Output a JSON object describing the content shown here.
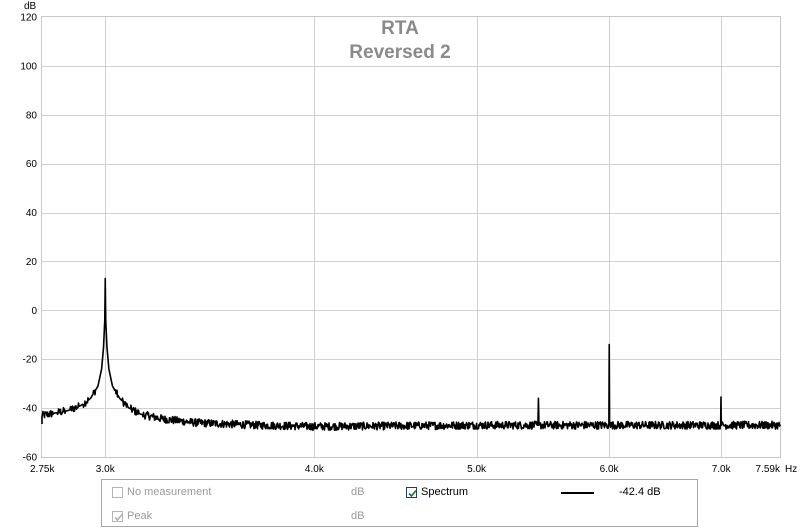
{
  "chart_data": {
    "type": "line",
    "title": "RTA",
    "subtitle": "Reversed 2",
    "ylabel": "dB",
    "xunit": "Hz",
    "xscale": "log",
    "xlim": [
      2750,
      7590
    ],
    "ylim": [
      -60,
      120
    ],
    "x_ticks": [
      {
        "value": 2750,
        "label": "2.75k"
      },
      {
        "value": 3000,
        "label": "3.0k"
      },
      {
        "value": 4000,
        "label": "4.0k"
      },
      {
        "value": 5000,
        "label": "5.0k"
      },
      {
        "value": 6000,
        "label": "6.0k"
      },
      {
        "value": 7000,
        "label": "7.0k"
      },
      {
        "value": 7590,
        "label": "7.59k"
      }
    ],
    "y_ticks": [
      {
        "value": 120,
        "label": "120"
      },
      {
        "value": 100,
        "label": "100"
      },
      {
        "value": 80,
        "label": "80"
      },
      {
        "value": 60,
        "label": "60"
      },
      {
        "value": 40,
        "label": "40"
      },
      {
        "value": 20,
        "label": "20"
      },
      {
        "value": 0,
        "label": "0"
      },
      {
        "value": -20,
        "label": "-20"
      },
      {
        "value": -40,
        "label": "-40"
      },
      {
        "value": -60,
        "label": "-60"
      }
    ],
    "grid": true,
    "series": [
      {
        "name": "Spectrum",
        "color": "#000000",
        "noise_floor_db": -47,
        "points": [
          [
            2750,
            -43
          ],
          [
            2800,
            -42
          ],
          [
            2850,
            -41
          ],
          [
            2900,
            -39
          ],
          [
            2940,
            -36
          ],
          [
            2970,
            -31
          ],
          [
            2985,
            -24
          ],
          [
            2993,
            -15
          ],
          [
            2998,
            -4
          ],
          [
            3000,
            13
          ],
          [
            3002,
            -4
          ],
          [
            3007,
            -15
          ],
          [
            3015,
            -24
          ],
          [
            3030,
            -31
          ],
          [
            3060,
            -36
          ],
          [
            3100,
            -40
          ],
          [
            3150,
            -42.5
          ],
          [
            3250,
            -44.5
          ],
          [
            3400,
            -46
          ],
          [
            3700,
            -47
          ],
          [
            4000,
            -47.5
          ],
          [
            5000,
            -47
          ],
          [
            5440,
            -47
          ],
          [
            5444,
            -36
          ],
          [
            5448,
            -47
          ],
          [
            5998,
            -47
          ],
          [
            6001,
            -14
          ],
          [
            6004,
            -47
          ],
          [
            6995,
            -47
          ],
          [
            6998,
            -35.5
          ],
          [
            7001,
            -47
          ],
          [
            7590,
            -47
          ]
        ]
      }
    ]
  },
  "legend": {
    "items": [
      {
        "label": "No measurement",
        "unit": "dB",
        "checked": false,
        "enabled": false
      },
      {
        "label": "Peak",
        "unit": "dB",
        "checked": true,
        "enabled": false
      },
      {
        "label": "Spectrum",
        "checked": true,
        "enabled": true,
        "value": "-42.4 dB"
      }
    ]
  }
}
